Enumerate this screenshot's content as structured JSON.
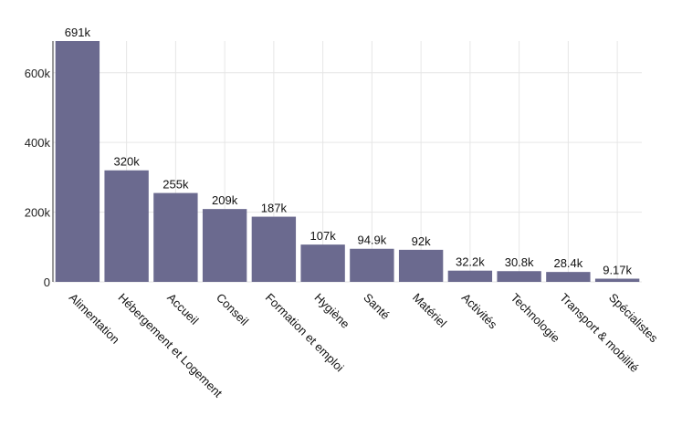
{
  "chart_data": {
    "type": "bar",
    "title": "",
    "xlabel": "",
    "ylabel": "",
    "ylim": [
      0,
      691000
    ],
    "yticks": [
      0,
      200000,
      400000,
      600000
    ],
    "ytick_labels": [
      "0",
      "200k",
      "400k",
      "600k"
    ],
    "grid": true,
    "bar_color": "#6b6a8f",
    "categories": [
      "Alimentation",
      "Hébergement et Logement",
      "Accueil",
      "Conseil",
      "Formation et emploi",
      "Hygiène",
      "Santé",
      "Matériel",
      "Activités",
      "Technologie",
      "Transport & mobilité",
      "Spécialistes"
    ],
    "values": [
      691000,
      320000,
      255000,
      209000,
      187000,
      107000,
      94900,
      92000,
      32200,
      30800,
      28400,
      9170
    ],
    "data_labels": [
      "691k",
      "320k",
      "255k",
      "209k",
      "187k",
      "107k",
      "94.9k",
      "92k",
      "32.2k",
      "30.8k",
      "28.4k",
      "9.17k"
    ]
  }
}
